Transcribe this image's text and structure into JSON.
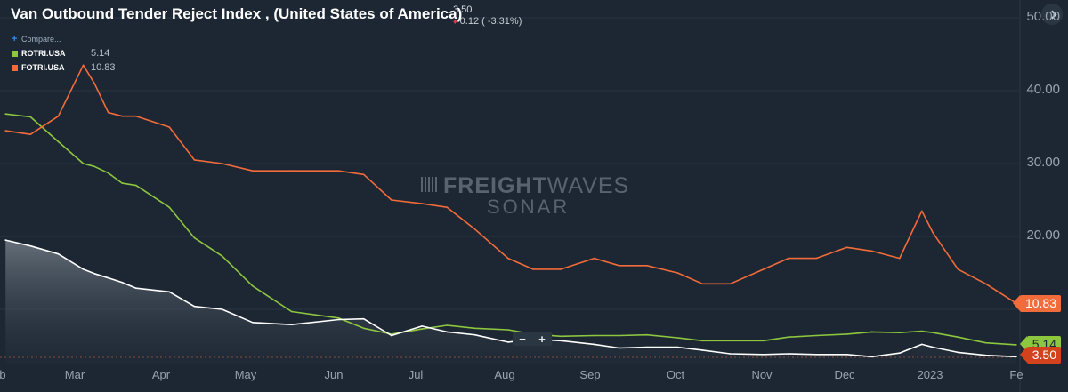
{
  "title": "Van Outbound Tender Reject Index , (United States of America)",
  "price": "3.50",
  "change": "0.12 ( -3.31%)",
  "compare_label": "Compare...",
  "legend": [
    {
      "symbol": "ROTRI.USA",
      "value": "5.14",
      "color": "#8dc63f"
    },
    {
      "symbol": "FOTRI.USA",
      "value": "10.83",
      "color": "#f26b3a"
    }
  ],
  "tags": {
    "fotri": "10.83",
    "rotri": "5.14",
    "main": "3.50"
  },
  "zoom": {
    "minus": "−",
    "plus": "+"
  },
  "watermark": {
    "brand_bold": "FREIGHT",
    "brand_light": "WAVES",
    "product": "SONAR"
  },
  "colors": {
    "background": "#1c2733",
    "main_line": "#ffffff",
    "rotri": "#8dc63f",
    "fotri": "#f26b3a",
    "main_tag": "#d2421c"
  },
  "chart_data": {
    "type": "line",
    "title": "Van Outbound Tender Reject Index , (United States of America)",
    "ylim": [
      3,
      52
    ],
    "yticks": [
      "50.00",
      "40.00",
      "30.00",
      "20.00"
    ],
    "xticks": [
      "b",
      "Mar",
      "Apr",
      "May",
      "Jun",
      "Jul",
      "Aug",
      "Sep",
      "Oct",
      "Nov",
      "Dec",
      "2023",
      "Fe"
    ],
    "x": [
      "2022-02-01",
      "2022-02-10",
      "2022-02-20",
      "2022-03-01",
      "2022-03-05",
      "2022-03-10",
      "2022-03-15",
      "2022-03-20",
      "2022-04-01",
      "2022-04-10",
      "2022-04-20",
      "2022-05-01",
      "2022-05-15",
      "2022-06-01",
      "2022-06-10",
      "2022-06-20",
      "2022-07-01",
      "2022-07-10",
      "2022-07-20",
      "2022-08-01",
      "2022-08-10",
      "2022-08-20",
      "2022-09-01",
      "2022-09-10",
      "2022-09-20",
      "2022-10-01",
      "2022-10-10",
      "2022-10-20",
      "2022-11-01",
      "2022-11-10",
      "2022-11-20",
      "2022-12-01",
      "2022-12-10",
      "2022-12-20",
      "2022-12-28",
      "2023-01-01",
      "2023-01-10",
      "2023-01-20",
      "2023-01-31"
    ],
    "series": [
      {
        "name": "ROTRI.USA",
        "values": [
          36.8,
          36.4,
          33.0,
          30.0,
          29.6,
          28.7,
          27.3,
          27.0,
          24.0,
          19.8,
          17.3,
          13.2,
          9.7,
          8.8,
          7.4,
          6.6,
          7.3,
          7.8,
          7.4,
          7.2,
          6.6,
          6.3,
          6.4,
          6.4,
          6.5,
          6.1,
          5.7,
          5.7,
          5.7,
          6.2,
          6.4,
          6.6,
          6.9,
          6.8,
          7.0,
          6.8,
          6.2,
          5.4,
          5.14
        ]
      },
      {
        "name": "FOTRI.USA",
        "values": [
          34.5,
          34.0,
          36.5,
          43.5,
          41.0,
          37.0,
          36.5,
          36.5,
          35.0,
          30.5,
          30.0,
          29.0,
          29.0,
          29.0,
          28.5,
          25.0,
          24.5,
          24.0,
          21.0,
          17.0,
          15.5,
          15.5,
          17.0,
          16.0,
          16.0,
          15.0,
          13.5,
          13.5,
          15.5,
          17.0,
          17.0,
          18.5,
          18.0,
          17.0,
          23.5,
          20.5,
          15.5,
          13.5,
          10.83
        ]
      },
      {
        "values": [
          19.5,
          18.7,
          17.6,
          15.5,
          14.9,
          14.3,
          13.7,
          12.9,
          12.4,
          10.4,
          10.0,
          8.2,
          7.9,
          8.6,
          8.7,
          6.4,
          7.7,
          6.9,
          6.5,
          5.5,
          5.9,
          5.7,
          5.2,
          4.7,
          4.8,
          4.8,
          4.4,
          3.9,
          3.8,
          3.9,
          3.8,
          3.8,
          3.5,
          4.0,
          5.2,
          4.8,
          4.1,
          3.7,
          3.5
        ]
      }
    ]
  }
}
